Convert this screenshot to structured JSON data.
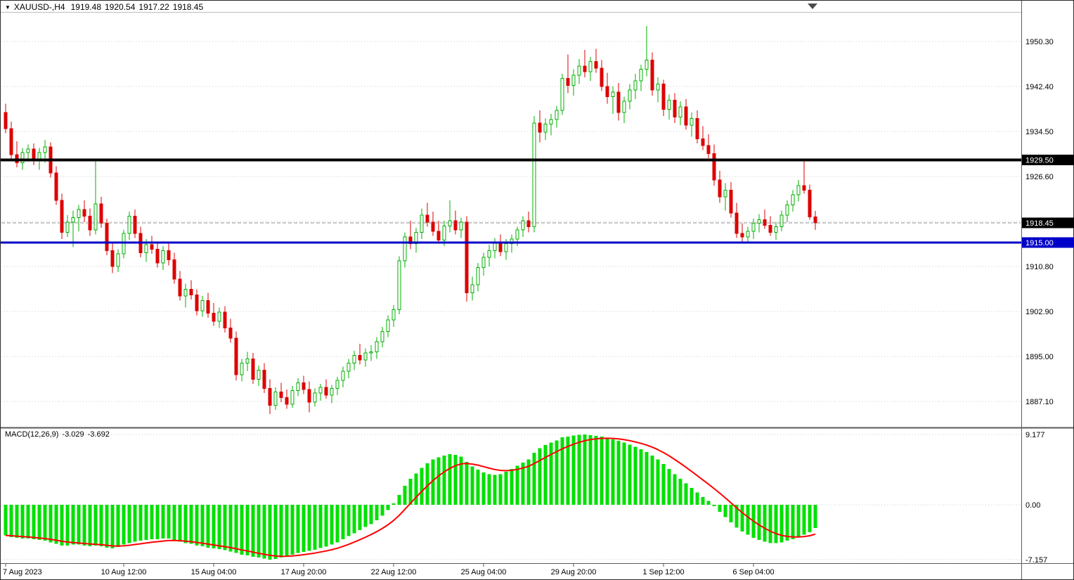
{
  "header": {
    "dropdown_icon": "▼",
    "symbol_tf": "XAUUSD-,H4",
    "open": "1919.48",
    "high": "1920.54",
    "low": "1917.22",
    "close": "1918.45"
  },
  "macd_panel": {
    "label": "MACD(12,26,9)",
    "main": "-3.029",
    "signal": "-3.692"
  },
  "colors": {
    "bull_body": "#ffffff",
    "bull_line": "#00b000",
    "bear": "#dd0202",
    "macd_histogram": "#00e002",
    "macd_signal": "#ff0000",
    "grid": "#c9c9c9",
    "frame": "#5a5a5a",
    "current_price_line": "#8c8c8c"
  },
  "chart_data": {
    "type": "candlestick",
    "title": "XAUUSD-,H4",
    "symbol": "XAUUSD-",
    "timeframe": "H4",
    "price_ylim": [
      1882.66,
      1955.11
    ],
    "macd_ylim": [
      -7.157,
      9.177
    ],
    "grid_prices": [
      1950.3,
      1942.4,
      1934.5,
      1926.6,
      1918.7,
      1910.8,
      1902.9,
      1895.0,
      1887.1
    ],
    "price_axis_ticks": [
      {
        "text": "1950.30",
        "value": 1950.3
      },
      {
        "text": "1942.40",
        "value": 1942.4
      },
      {
        "text": "1934.50",
        "value": 1934.5
      },
      {
        "text": "1926.60",
        "value": 1926.6
      },
      {
        "text": "1910.80",
        "value": 1910.8
      },
      {
        "text": "1902.90",
        "value": 1902.9
      },
      {
        "text": "1895.00",
        "value": 1895.0
      },
      {
        "text": "1887.10",
        "value": 1887.1
      }
    ],
    "highlighted_levels": [
      {
        "text": "1929.50",
        "value": 1929.5,
        "bg": "#000000",
        "fg": "#ffffff",
        "line": "solid",
        "width": 4,
        "name": "resistance-level-line"
      },
      {
        "text": "1918.45",
        "value": 1918.45,
        "bg": "#000000",
        "fg": "#ffffff",
        "line": "dashed",
        "width": 1,
        "name": "current-price-line"
      },
      {
        "text": "1915.00",
        "value": 1915.0,
        "bg": "#0000c8",
        "fg": "#ffffff",
        "line": "solid",
        "width": 3,
        "name": "support-level-line"
      }
    ],
    "macd_axis_ticks": [
      {
        "text": "9.177",
        "value": 9.177
      },
      {
        "text": "0.00",
        "value": 0
      },
      {
        "text": "-7.157",
        "value": -7.157
      }
    ],
    "time_ticks": [
      {
        "text": "7 Aug 2023",
        "bar": 0
      },
      {
        "text": "10 Aug 12:00",
        "bar": 21
      },
      {
        "text": "15 Aug 04:00",
        "bar": 37
      },
      {
        "text": "17 Aug 20:00",
        "bar": 53
      },
      {
        "text": "22 Aug 12:00",
        "bar": 69
      },
      {
        "text": "25 Aug 04:00",
        "bar": 85
      },
      {
        "text": "29 Aug 20:00",
        "bar": 101
      },
      {
        "text": "1 Sep 12:00",
        "bar": 117
      },
      {
        "text": "6 Sep 04:00",
        "bar": 133
      }
    ],
    "candles": [
      [
        1937.8,
        1939.4,
        1934.2,
        1935.0
      ],
      [
        1935.0,
        1936.2,
        1929.6,
        1930.4
      ],
      [
        1930.4,
        1932.8,
        1928.2,
        1929.0
      ],
      [
        1929.0,
        1931.6,
        1927.8,
        1930.8
      ],
      [
        1930.8,
        1932.2,
        1929.2,
        1931.4
      ],
      [
        1931.4,
        1932.4,
        1928.6,
        1929.4
      ],
      [
        1929.4,
        1931.6,
        1927.8,
        1930.8
      ],
      [
        1930.8,
        1933.0,
        1929.0,
        1931.8
      ],
      [
        1931.8,
        1932.6,
        1926.4,
        1927.2
      ],
      [
        1927.2,
        1928.4,
        1921.6,
        1922.4
      ],
      [
        1922.4,
        1923.6,
        1915.6,
        1916.8
      ],
      [
        1916.8,
        1919.8,
        1916.0,
        1918.6
      ],
      [
        1918.6,
        1920.6,
        1914.2,
        1919.4
      ],
      [
        1919.4,
        1921.6,
        1917.0,
        1920.8
      ],
      [
        1920.8,
        1922.4,
        1918.6,
        1919.6
      ],
      [
        1919.6,
        1921.0,
        1916.2,
        1917.2
      ],
      [
        1917.2,
        1929.6,
        1916.4,
        1921.8
      ],
      [
        1921.8,
        1923.0,
        1917.6,
        1918.4
      ],
      [
        1918.4,
        1919.2,
        1912.8,
        1913.6
      ],
      [
        1913.6,
        1915.0,
        1909.6,
        1910.8
      ],
      [
        1910.8,
        1913.8,
        1909.8,
        1913.0
      ],
      [
        1913.0,
        1917.2,
        1912.2,
        1916.6
      ],
      [
        1916.6,
        1920.4,
        1915.4,
        1919.6
      ],
      [
        1919.6,
        1920.8,
        1915.8,
        1916.6
      ],
      [
        1916.6,
        1917.8,
        1912.4,
        1913.2
      ],
      [
        1913.2,
        1915.6,
        1911.6,
        1914.6
      ],
      [
        1914.6,
        1916.2,
        1913.0,
        1913.8
      ],
      [
        1913.8,
        1915.2,
        1910.6,
        1911.4
      ],
      [
        1911.4,
        1914.4,
        1910.2,
        1913.6
      ],
      [
        1913.6,
        1914.8,
        1911.0,
        1912.0
      ],
      [
        1912.0,
        1913.2,
        1907.8,
        1908.6
      ],
      [
        1908.6,
        1910.0,
        1904.8,
        1905.6
      ],
      [
        1905.6,
        1907.8,
        1903.6,
        1906.8
      ],
      [
        1906.8,
        1908.4,
        1905.0,
        1905.8
      ],
      [
        1905.8,
        1906.8,
        1902.2,
        1903.0
      ],
      [
        1903.0,
        1905.6,
        1902.0,
        1904.8
      ],
      [
        1904.8,
        1906.2,
        1901.8,
        1902.6
      ],
      [
        1902.6,
        1904.4,
        1900.4,
        1901.2
      ],
      [
        1901.2,
        1903.6,
        1900.0,
        1902.8
      ],
      [
        1902.8,
        1903.8,
        1899.2,
        1900.0
      ],
      [
        1900.0,
        1901.6,
        1897.4,
        1898.2
      ],
      [
        1898.2,
        1899.4,
        1890.8,
        1891.8
      ],
      [
        1891.8,
        1894.6,
        1890.6,
        1893.8
      ],
      [
        1893.8,
        1895.8,
        1892.4,
        1894.6
      ],
      [
        1894.6,
        1895.6,
        1890.2,
        1891.0
      ],
      [
        1891.0,
        1893.4,
        1889.8,
        1892.6
      ],
      [
        1892.6,
        1893.8,
        1888.6,
        1889.4
      ],
      [
        1889.4,
        1891.0,
        1884.9,
        1886.4
      ],
      [
        1886.4,
        1889.6,
        1885.6,
        1888.8
      ],
      [
        1888.8,
        1890.4,
        1887.0,
        1887.8
      ],
      [
        1887.8,
        1889.2,
        1885.8,
        1886.6
      ],
      [
        1886.6,
        1889.8,
        1886.0,
        1889.0
      ],
      [
        1889.0,
        1891.2,
        1888.0,
        1890.4
      ],
      [
        1890.4,
        1891.6,
        1888.4,
        1889.2
      ],
      [
        1889.2,
        1890.6,
        1885.2,
        1887.0
      ],
      [
        1887.0,
        1889.4,
        1886.2,
        1888.6
      ],
      [
        1888.6,
        1890.2,
        1887.2,
        1889.6
      ],
      [
        1889.6,
        1891.0,
        1887.6,
        1888.2
      ],
      [
        1888.2,
        1890.0,
        1886.8,
        1889.4
      ],
      [
        1889.4,
        1891.4,
        1888.2,
        1890.8
      ],
      [
        1890.8,
        1893.2,
        1889.6,
        1892.4
      ],
      [
        1892.4,
        1894.6,
        1891.2,
        1893.8
      ],
      [
        1893.8,
        1896.0,
        1892.6,
        1895.2
      ],
      [
        1895.2,
        1897.2,
        1893.6,
        1894.4
      ],
      [
        1894.4,
        1896.4,
        1893.2,
        1895.6
      ],
      [
        1895.6,
        1897.0,
        1894.2,
        1895.8
      ],
      [
        1895.8,
        1898.4,
        1894.6,
        1897.6
      ],
      [
        1897.6,
        1900.2,
        1896.6,
        1899.4
      ],
      [
        1899.4,
        1902.2,
        1898.4,
        1901.4
      ],
      [
        1901.4,
        1904.0,
        1900.2,
        1903.2
      ],
      [
        1903.2,
        1912.6,
        1902.4,
        1911.8
      ],
      [
        1911.8,
        1916.8,
        1910.6,
        1916.0
      ],
      [
        1916.0,
        1918.8,
        1913.8,
        1914.8
      ],
      [
        1914.8,
        1917.6,
        1913.2,
        1916.8
      ],
      [
        1916.8,
        1921.0,
        1915.6,
        1919.8
      ],
      [
        1919.8,
        1922.0,
        1917.8,
        1918.6
      ],
      [
        1918.6,
        1920.4,
        1916.2,
        1917.0
      ],
      [
        1917.0,
        1918.8,
        1914.8,
        1915.4
      ],
      [
        1915.4,
        1918.8,
        1914.4,
        1917.9
      ],
      [
        1917.9,
        1922.4,
        1916.8,
        1918.8
      ],
      [
        1918.8,
        1920.6,
        1916.4,
        1917.2
      ],
      [
        1917.2,
        1919.4,
        1915.8,
        1918.6
      ],
      [
        1918.6,
        1919.6,
        1904.6,
        1906.2
      ],
      [
        1906.2,
        1909.0,
        1904.8,
        1907.6
      ],
      [
        1907.6,
        1911.4,
        1906.4,
        1910.6
      ],
      [
        1910.6,
        1913.2,
        1909.2,
        1912.4
      ],
      [
        1912.4,
        1914.6,
        1910.8,
        1913.6
      ],
      [
        1913.6,
        1915.8,
        1912.2,
        1915.0
      ],
      [
        1915.0,
        1916.4,
        1912.6,
        1913.4
      ],
      [
        1913.4,
        1915.6,
        1912.0,
        1914.8
      ],
      [
        1914.8,
        1916.4,
        1913.2,
        1915.6
      ],
      [
        1915.6,
        1917.8,
        1914.4,
        1917.2
      ],
      [
        1917.2,
        1919.6,
        1916.0,
        1918.8
      ],
      [
        1918.8,
        1920.4,
        1916.8,
        1917.8
      ],
      [
        1917.8,
        1937.2,
        1916.8,
        1936.0
      ],
      [
        1936.0,
        1938.2,
        1932.6,
        1934.4
      ],
      [
        1934.4,
        1936.8,
        1933.0,
        1935.8
      ],
      [
        1935.8,
        1937.6,
        1933.8,
        1936.6
      ],
      [
        1936.6,
        1939.0,
        1935.2,
        1938.2
      ],
      [
        1938.2,
        1944.6,
        1937.4,
        1943.8
      ],
      [
        1943.8,
        1948.0,
        1941.2,
        1942.6
      ],
      [
        1942.6,
        1945.4,
        1940.8,
        1944.4
      ],
      [
        1944.4,
        1947.2,
        1942.8,
        1946.0
      ],
      [
        1946.0,
        1948.8,
        1944.0,
        1945.0
      ],
      [
        1945.0,
        1947.6,
        1943.4,
        1946.8
      ],
      [
        1946.8,
        1949.0,
        1944.8,
        1945.6
      ],
      [
        1945.6,
        1947.0,
        1941.6,
        1942.4
      ],
      [
        1942.4,
        1944.8,
        1939.4,
        1940.6
      ],
      [
        1940.6,
        1942.4,
        1937.6,
        1941.4
      ],
      [
        1941.4,
        1943.0,
        1936.4,
        1937.8
      ],
      [
        1937.8,
        1940.6,
        1936.0,
        1939.8
      ],
      [
        1939.8,
        1942.8,
        1938.4,
        1941.8
      ],
      [
        1941.8,
        1944.6,
        1940.2,
        1943.4
      ],
      [
        1943.4,
        1946.2,
        1941.6,
        1945.4
      ],
      [
        1945.4,
        1953.0,
        1944.2,
        1947.0
      ],
      [
        1947.0,
        1948.4,
        1940.8,
        1941.8
      ],
      [
        1941.8,
        1944.0,
        1939.6,
        1942.8
      ],
      [
        1942.8,
        1943.6,
        1937.2,
        1938.4
      ],
      [
        1938.4,
        1941.0,
        1936.6,
        1940.0
      ],
      [
        1940.0,
        1941.2,
        1936.0,
        1937.0
      ],
      [
        1937.0,
        1939.8,
        1935.6,
        1938.8
      ],
      [
        1938.8,
        1940.2,
        1934.8,
        1935.6
      ],
      [
        1935.6,
        1937.8,
        1933.6,
        1936.8
      ],
      [
        1936.8,
        1938.2,
        1932.4,
        1933.2
      ],
      [
        1933.2,
        1935.4,
        1931.2,
        1932.0
      ],
      [
        1932.0,
        1934.0,
        1929.8,
        1930.6
      ],
      [
        1930.6,
        1932.2,
        1925.0,
        1926.0
      ],
      [
        1926.0,
        1927.6,
        1922.0,
        1923.0
      ],
      [
        1923.0,
        1925.4,
        1920.6,
        1924.2
      ],
      [
        1924.2,
        1925.6,
        1919.4,
        1920.2
      ],
      [
        1920.2,
        1922.0,
        1915.8,
        1916.6
      ],
      [
        1916.6,
        1918.4,
        1915.2,
        1916.0
      ],
      [
        1916.0,
        1917.8,
        1915.0,
        1917.0
      ],
      [
        1917.0,
        1919.2,
        1915.6,
        1918.4
      ],
      [
        1918.4,
        1920.0,
        1916.8,
        1919.0
      ],
      [
        1919.0,
        1920.8,
        1917.4,
        1918.0
      ],
      [
        1918.0,
        1919.6,
        1916.2,
        1916.8
      ],
      [
        1916.8,
        1918.6,
        1915.4,
        1917.8
      ],
      [
        1917.8,
        1920.6,
        1917.0,
        1919.8
      ],
      [
        1919.8,
        1922.4,
        1918.6,
        1921.6
      ],
      [
        1921.6,
        1924.2,
        1920.4,
        1923.4
      ],
      [
        1923.4,
        1926.0,
        1922.2,
        1925.0
      ],
      [
        1925.0,
        1929.4,
        1923.6,
        1924.2
      ],
      [
        1924.2,
        1925.2,
        1919.0,
        1919.5
      ],
      [
        1919.48,
        1920.54,
        1917.22,
        1918.45
      ]
    ],
    "macd_histogram": [
      -4.0,
      -4.2,
      -4.3,
      -4.4,
      -4.4,
      -4.5,
      -4.6,
      -4.7,
      -4.9,
      -5.1,
      -5.3,
      -5.3,
      -5.2,
      -5.2,
      -5.3,
      -5.4,
      -5.3,
      -5.4,
      -5.6,
      -5.7,
      -5.5,
      -5.2,
      -5.0,
      -4.8,
      -4.7,
      -4.6,
      -4.5,
      -4.5,
      -4.4,
      -4.4,
      -4.6,
      -4.8,
      -5.0,
      -5.1,
      -5.3,
      -5.4,
      -5.6,
      -5.7,
      -5.8,
      -5.9,
      -6.1,
      -6.3,
      -6.5,
      -6.6,
      -6.8,
      -6.9,
      -7.0,
      -7.157,
      -7.05,
      -6.9,
      -6.7,
      -6.5,
      -6.3,
      -6.15,
      -6.0,
      -5.85,
      -5.65,
      -5.45,
      -5.2,
      -4.9,
      -4.5,
      -4.1,
      -3.7,
      -3.3,
      -2.9,
      -2.5,
      -2.0,
      -1.4,
      -0.7,
      0.2,
      1.3,
      2.5,
      3.4,
      4.1,
      4.8,
      5.4,
      5.9,
      6.2,
      6.4,
      6.6,
      6.5,
      6.3,
      5.6,
      5.0,
      4.6,
      4.2,
      4.0,
      3.9,
      4.0,
      4.3,
      4.7,
      5.1,
      5.5,
      5.9,
      6.8,
      7.4,
      7.8,
      8.1,
      8.4,
      8.8,
      8.9,
      9.05,
      9.15,
      9.177,
      9.1,
      9.0,
      8.9,
      8.75,
      8.55,
      8.35,
      8.1,
      7.85,
      7.55,
      7.25,
      6.9,
      6.4,
      5.9,
      5.3,
      4.7,
      4.0,
      3.4,
      2.8,
      2.2,
      1.6,
      1.0,
      0.5,
      -0.2,
      -0.9,
      -1.6,
      -2.3,
      -3.0,
      -3.5,
      -3.9,
      -4.3,
      -4.6,
      -4.8,
      -5.0,
      -5.0,
      -4.9,
      -4.7,
      -4.5,
      -4.2,
      -3.9,
      -3.6,
      -3.029
    ],
    "macd_signal_period": 9,
    "macd_last": {
      "main": -3.029,
      "signal": -3.692
    }
  }
}
